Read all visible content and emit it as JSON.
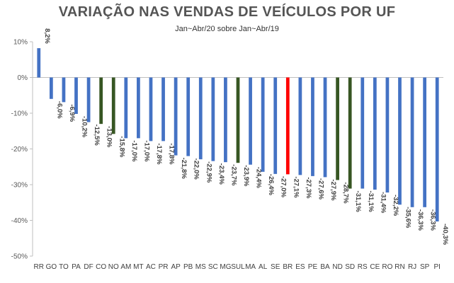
{
  "chart_data": {
    "type": "bar",
    "title": "VARIAÇÃO NAS VENDAS DE VEÍCULOS POR UF",
    "subtitle": "Jan~Abr/20 sobre Jan~Abr/19",
    "xlabel": "",
    "ylabel": "",
    "ylim": [
      -50,
      10
    ],
    "y_ticks": [
      10,
      0,
      -10,
      -20,
      -30,
      -40,
      -50
    ],
    "y_tick_labels": [
      "10%",
      "0%",
      "-10%",
      "-20%",
      "-30%",
      "-40%",
      "-50%"
    ],
    "grid": false,
    "categories": [
      "RR",
      "GO",
      "TO",
      "PA",
      "DF",
      "CO",
      "NO",
      "AM",
      "MT",
      "AC",
      "PR",
      "AP",
      "PB",
      "MS",
      "SC",
      "MG",
      "SUL",
      "MA",
      "AL",
      "SE",
      "BR",
      "ES",
      "PE",
      "BA",
      "ND",
      "SD",
      "RS",
      "CE",
      "RO",
      "RN",
      "RJ",
      "SP",
      "PI"
    ],
    "values": [
      8.2,
      -6.0,
      -6.9,
      -10.2,
      -12.5,
      -13.0,
      -15.8,
      -17.0,
      -17.0,
      -17.8,
      -17.8,
      -21.8,
      -22.0,
      -22.9,
      -23.4,
      -23.7,
      -23.9,
      -24.4,
      -26.4,
      -27.0,
      -27.1,
      -27.3,
      -27.6,
      -27.9,
      -28.7,
      -31.1,
      -31.1,
      -31.4,
      -32.2,
      -35.6,
      -36.3,
      -36.3,
      -40.3
    ],
    "value_labels": [
      "8,2%",
      "-6,0%",
      "-6,9%",
      "-10,2%",
      "-12,5%",
      "-13,0%",
      "-15,8%",
      "-17,0%",
      "-17,0%",
      "-17,8%",
      "-17,8%",
      "-21,8%",
      "-22,0%",
      "-22,9%",
      "-23,4%",
      "-23,7%",
      "-23,9%",
      "-24,4%",
      "-26,4%",
      "-27,0%",
      "-27,1%",
      "-27,3%",
      "-27,6%",
      "-27,9%",
      "-28,7%",
      "-31,1%",
      "-31,1%",
      "-31,4%",
      "-32,2%",
      "-35,6%",
      "-36,3%",
      "-36,3%",
      "-40,3%"
    ],
    "bar_colors": [
      "#4472C4",
      "#4472C4",
      "#4472C4",
      "#4472C4",
      "#4472C4",
      "#375623",
      "#375623",
      "#4472C4",
      "#4472C4",
      "#4472C4",
      "#4472C4",
      "#4472C4",
      "#4472C4",
      "#4472C4",
      "#4472C4",
      "#4472C4",
      "#375623",
      "#4472C4",
      "#4472C4",
      "#4472C4",
      "#FF0000",
      "#4472C4",
      "#4472C4",
      "#4472C4",
      "#375623",
      "#375623",
      "#4472C4",
      "#4472C4",
      "#4472C4",
      "#4472C4",
      "#4472C4",
      "#4472C4",
      "#4472C4"
    ],
    "colors": {
      "default": "#4472C4",
      "region": "#375623",
      "national": "#FF0000"
    }
  }
}
